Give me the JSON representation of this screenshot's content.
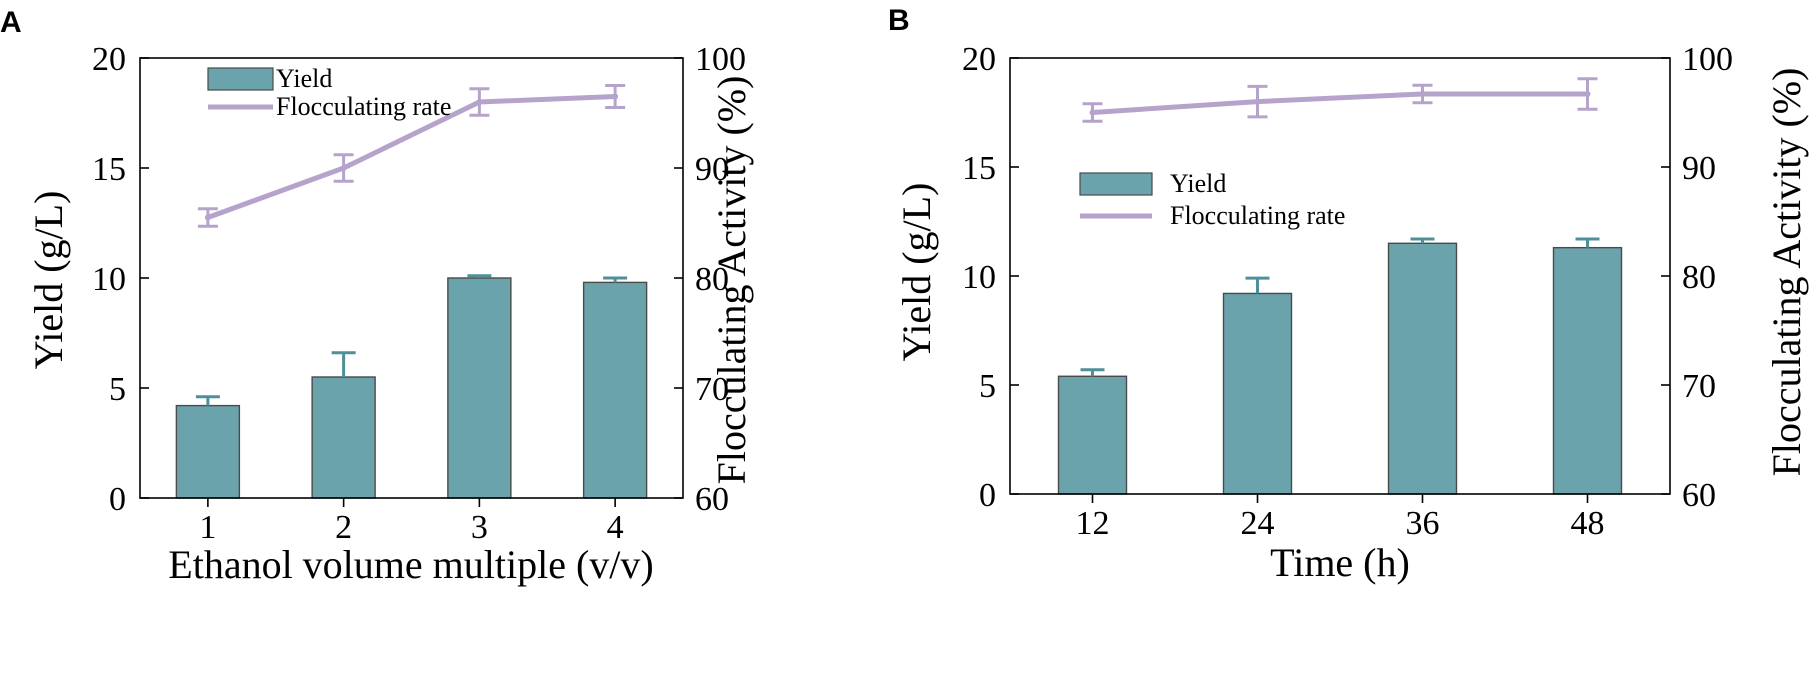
{
  "colors": {
    "bar": "#6aa3ab",
    "bar_edge": "#4a4a4a",
    "bar_err": "#4f8f98",
    "line": "#b6a3cc",
    "axis": "#000000"
  },
  "chart_data": [
    {
      "panel": "A",
      "type": "bar+line",
      "categories": [
        "1",
        "2",
        "3",
        "4"
      ],
      "xlabel": "Ethanol volume multiple (v/v)",
      "ylabel": "Yield (g/L)",
      "y2label": "Flocculating Activity (%)",
      "ylim": [
        0,
        20
      ],
      "yticks": [
        0,
        5,
        10,
        15,
        20
      ],
      "y2lim": [
        60,
        100
      ],
      "y2ticks": [
        60,
        70,
        80,
        90,
        100
      ],
      "legend_position": "top-left",
      "series": [
        {
          "name": "Yield",
          "kind": "bar",
          "axis": "left",
          "values": [
            4.2,
            5.5,
            10.0,
            9.8
          ],
          "errors": [
            0.4,
            1.1,
            0.1,
            0.2
          ]
        },
        {
          "name": "Flocculating rate",
          "kind": "line",
          "axis": "right",
          "values": [
            85.5,
            90.0,
            96.0,
            96.5
          ],
          "errors": [
            0.8,
            1.2,
            1.2,
            1.0
          ]
        }
      ]
    },
    {
      "panel": "B",
      "type": "bar+line",
      "categories": [
        "12",
        "24",
        "36",
        "48"
      ],
      "xlabel": "Time (h)",
      "ylabel": "Yield (g/L)",
      "y2label": "Flocculating Activity (%)",
      "ylim": [
        0,
        20
      ],
      "yticks": [
        0,
        5,
        10,
        15,
        20
      ],
      "y2lim": [
        60,
        100
      ],
      "y2ticks": [
        60,
        70,
        80,
        90,
        100
      ],
      "legend_position": "upper-left",
      "series": [
        {
          "name": "Yield",
          "kind": "bar",
          "axis": "left",
          "values": [
            5.4,
            9.2,
            11.5,
            11.3
          ],
          "errors": [
            0.3,
            0.7,
            0.2,
            0.4
          ]
        },
        {
          "name": "Flocculating rate",
          "kind": "line",
          "axis": "right",
          "values": [
            95.0,
            96.0,
            96.7,
            96.7
          ],
          "errors": [
            0.8,
            1.4,
            0.8,
            1.4
          ]
        }
      ]
    }
  ]
}
